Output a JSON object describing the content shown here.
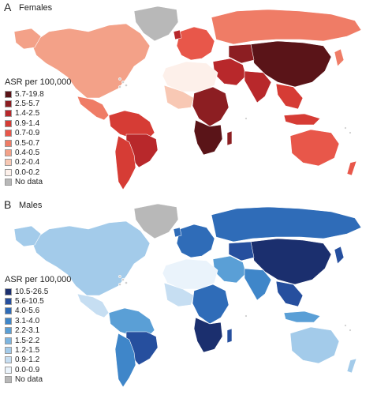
{
  "panels": [
    {
      "letter": "A",
      "title": "Females",
      "legend_title": "ASR per 100,000",
      "legend": [
        {
          "label": "5.7-19.8",
          "color": "#5a1418"
        },
        {
          "label": "2.5-5.7",
          "color": "#8c1e22"
        },
        {
          "label": "1.4-2.5",
          "color": "#b8282b"
        },
        {
          "label": "0.9-1.4",
          "color": "#d63c35"
        },
        {
          "label": "0.7-0.9",
          "color": "#e8574a"
        },
        {
          "label": "0.5-0.7",
          "color": "#ef7c66"
        },
        {
          "label": "0.4-0.5",
          "color": "#f3a188"
        },
        {
          "label": "0.2-0.4",
          "color": "#f8c8b4"
        },
        {
          "label": "0.0-0.2",
          "color": "#fdf0ea"
        },
        {
          "label": "No data",
          "color": "#b8b8b8"
        }
      ]
    },
    {
      "letter": "B",
      "title": "Males",
      "legend_title": "ASR per 100,000",
      "legend": [
        {
          "label": "10.5-26.5",
          "color": "#1b2f6e"
        },
        {
          "label": "5.6-10.5",
          "color": "#264f9e"
        },
        {
          "label": "4.0-5.6",
          "color": "#2f6cb8"
        },
        {
          "label": "3.1-4.0",
          "color": "#3f86c9"
        },
        {
          "label": "2.2-3.1",
          "color": "#5a9fd6"
        },
        {
          "label": "1.5-2.2",
          "color": "#7db5e0"
        },
        {
          "label": "1.2-1.5",
          "color": "#a3cbea"
        },
        {
          "label": "0.9-1.2",
          "color": "#c6def2"
        },
        {
          "label": "0.0-0.9",
          "color": "#eaf3fb"
        },
        {
          "label": "No data",
          "color": "#b8b8b8"
        }
      ]
    }
  ]
}
